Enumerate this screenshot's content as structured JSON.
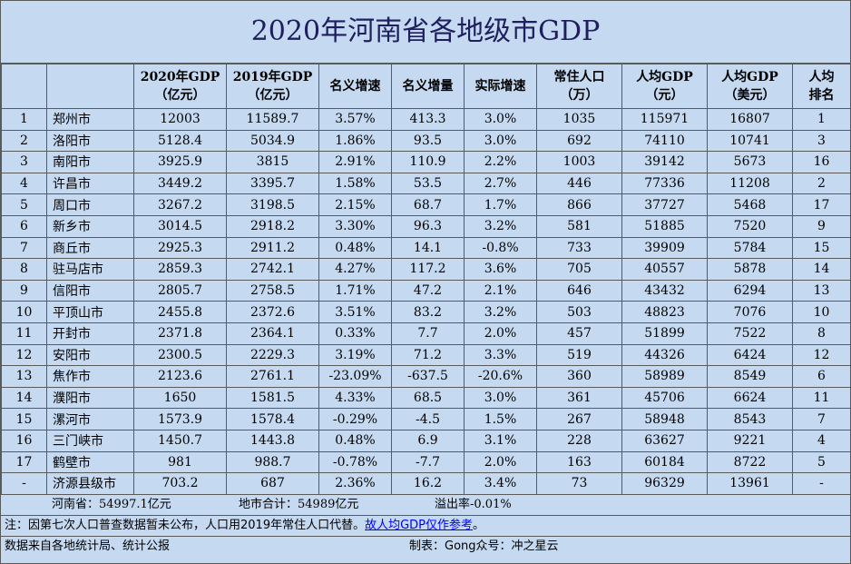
{
  "title": "2020年河南省各地级市GDP",
  "headers": [
    {
      "l1": "",
      "l2": ""
    },
    {
      "l1": "",
      "l2": ""
    },
    {
      "l1": "2020年GDP",
      "l2": "（亿元）"
    },
    {
      "l1": "2019年GDP",
      "l2": "（亿元）"
    },
    {
      "l1": "名义增速",
      "l2": ""
    },
    {
      "l1": "名义增量",
      "l2": ""
    },
    {
      "l1": "实际增速",
      "l2": ""
    },
    {
      "l1": "常住人口",
      "l2": "（万）"
    },
    {
      "l1": "人均GDP",
      "l2": "（元）"
    },
    {
      "l1": "人均GDP",
      "l2": "（美元）"
    },
    {
      "l1": "人均",
      "l2": "排名"
    }
  ],
  "rows": [
    [
      "1",
      "郑州市",
      "12003",
      "11589.7",
      "3.57%",
      "413.3",
      "3.0%",
      "1035",
      "115971",
      "16807",
      "1"
    ],
    [
      "2",
      "洛阳市",
      "5128.4",
      "5034.9",
      "1.86%",
      "93.5",
      "3.0%",
      "692",
      "74110",
      "10741",
      "3"
    ],
    [
      "3",
      "南阳市",
      "3925.9",
      "3815",
      "2.91%",
      "110.9",
      "2.2%",
      "1003",
      "39142",
      "5673",
      "16"
    ],
    [
      "4",
      "许昌市",
      "3449.2",
      "3395.7",
      "1.58%",
      "53.5",
      "2.7%",
      "446",
      "77336",
      "11208",
      "2"
    ],
    [
      "5",
      "周口市",
      "3267.2",
      "3198.5",
      "2.15%",
      "68.7",
      "1.7%",
      "866",
      "37727",
      "5468",
      "17"
    ],
    [
      "6",
      "新乡市",
      "3014.5",
      "2918.2",
      "3.30%",
      "96.3",
      "3.2%",
      "581",
      "51885",
      "7520",
      "9"
    ],
    [
      "7",
      "商丘市",
      "2925.3",
      "2911.2",
      "0.48%",
      "14.1",
      "-0.8%",
      "733",
      "39909",
      "5784",
      "15"
    ],
    [
      "8",
      "驻马店市",
      "2859.3",
      "2742.1",
      "4.27%",
      "117.2",
      "3.6%",
      "705",
      "40557",
      "5878",
      "14"
    ],
    [
      "9",
      "信阳市",
      "2805.7",
      "2758.5",
      "1.71%",
      "47.2",
      "2.1%",
      "646",
      "43432",
      "6294",
      "13"
    ],
    [
      "10",
      "平顶山市",
      "2455.8",
      "2372.6",
      "3.51%",
      "83.2",
      "3.2%",
      "503",
      "48823",
      "7076",
      "10"
    ],
    [
      "11",
      "开封市",
      "2371.8",
      "2364.1",
      "0.33%",
      "7.7",
      "2.0%",
      "457",
      "51899",
      "7522",
      "8"
    ],
    [
      "12",
      "安阳市",
      "2300.5",
      "2229.3",
      "3.19%",
      "71.2",
      "3.3%",
      "519",
      "44326",
      "6424",
      "12"
    ],
    [
      "13",
      "焦作市",
      "2123.6",
      "2761.1",
      "-23.09%",
      "-637.5",
      "-20.6%",
      "360",
      "58989",
      "8549",
      "6"
    ],
    [
      "14",
      "濮阳市",
      "1650",
      "1581.5",
      "4.33%",
      "68.5",
      "3.0%",
      "361",
      "45706",
      "6624",
      "11"
    ],
    [
      "15",
      "漯河市",
      "1573.9",
      "1578.4",
      "-0.29%",
      "-4.5",
      "1.5%",
      "267",
      "58948",
      "8543",
      "7"
    ],
    [
      "16",
      "三门峡市",
      "1450.7",
      "1443.8",
      "0.48%",
      "6.9",
      "3.1%",
      "228",
      "63627",
      "9221",
      "4"
    ],
    [
      "17",
      "鹤壁市",
      "981",
      "988.7",
      "-0.78%",
      "-7.7",
      "2.0%",
      "163",
      "60184",
      "8722",
      "5"
    ],
    [
      "-",
      "济源县级市",
      "703.2",
      "687",
      "2.36%",
      "16.2",
      "3.4%",
      "73",
      "96329",
      "13961",
      "-"
    ]
  ],
  "summary": {
    "province": "河南省：54997.1亿元",
    "total": "地市合计：54989亿元",
    "overflow": "溢出率-0.01%"
  },
  "footnote": {
    "main": "注：因第七次人口普查数据暂未公布，人口用2019年常住人口代替。",
    "emph": "故人均GDP仅作参考"
  },
  "footnote_end": "。",
  "source": {
    "left": "数据来自各地统计局、统计公报",
    "credit": "制表：Gong众号：冲之星云"
  },
  "colors": {
    "background": "#c5d9f1",
    "border": "#5a5a5a",
    "title_text": "#1f1f5f",
    "emphasis": "#0000ff"
  }
}
